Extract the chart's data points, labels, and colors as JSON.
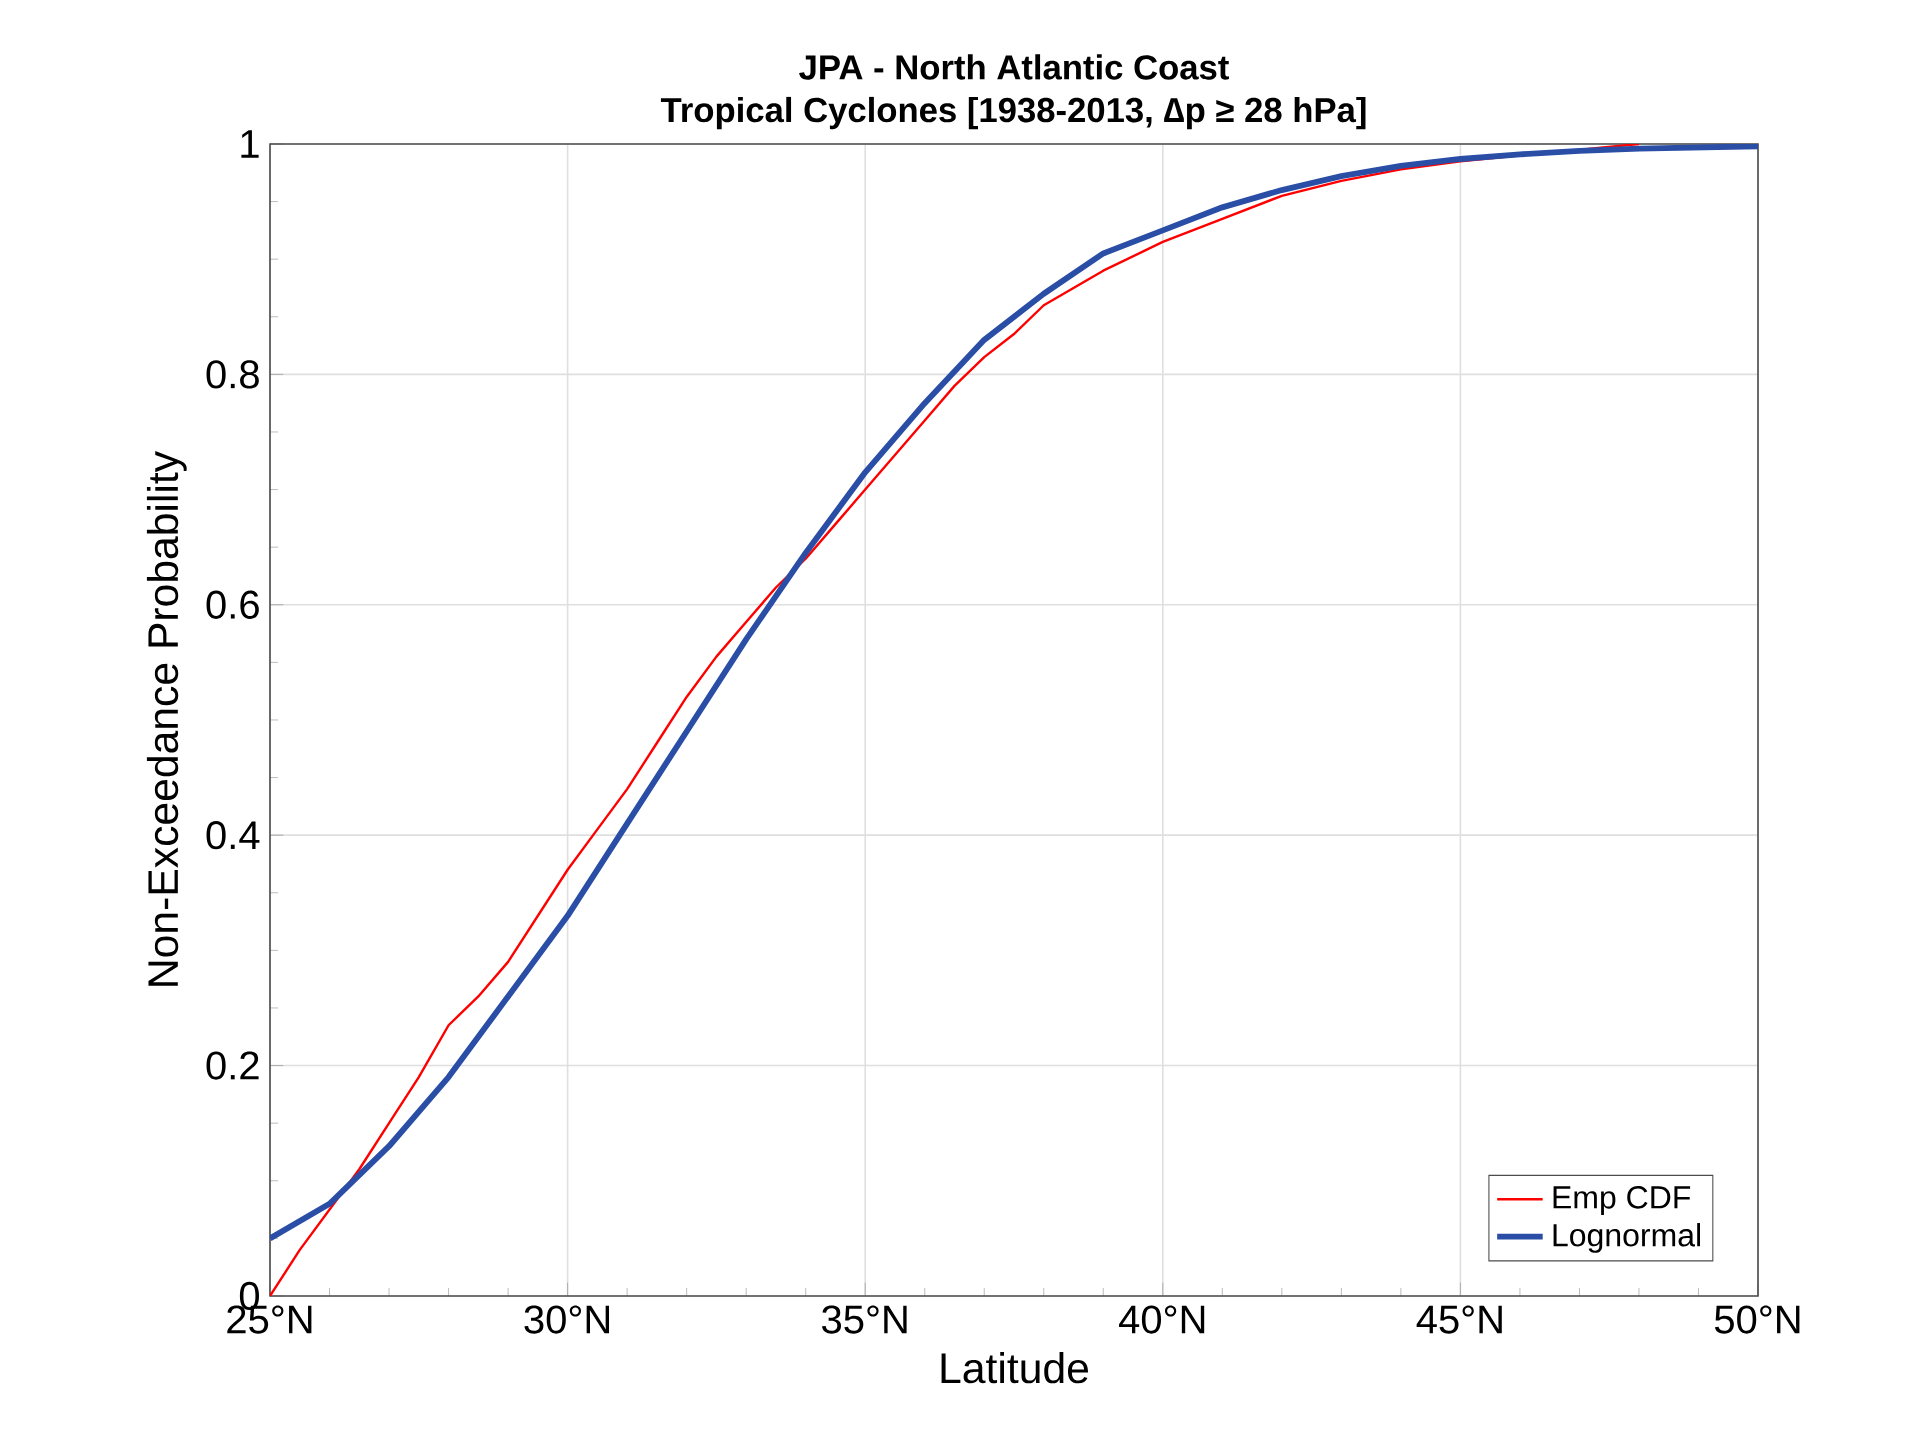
{
  "chart_data": {
    "type": "line",
    "title": "JPA - North Atlantic Coast",
    "subtitle": "Tropical Cyclones [1938-2013, ∆p ≥ 28 hPa]",
    "xlabel": "Latitude",
    "ylabel": "Non-Exceedance Probability",
    "xlim": [
      25,
      50
    ],
    "xticks": [
      {
        "value": 25,
        "label": "25°N"
      },
      {
        "value": 30,
        "label": "30°N"
      },
      {
        "value": 35,
        "label": "35°N"
      },
      {
        "value": 40,
        "label": "40°N"
      },
      {
        "value": 45,
        "label": "45°N"
      },
      {
        "value": 50,
        "label": "50°N"
      }
    ],
    "ylim": [
      0,
      1
    ],
    "yticks": [
      0,
      0.2,
      0.4,
      0.6,
      0.8,
      1
    ],
    "grid": true,
    "legend": "bottom right",
    "series": [
      {
        "name": "Emp CDF",
        "color": "#ff0000",
        "x": [
          25,
          25.5,
          26,
          26.5,
          27,
          27.5,
          28,
          28.5,
          29,
          29.5,
          30,
          30.5,
          31,
          31.5,
          32,
          32.5,
          33,
          33.5,
          34,
          34.5,
          35,
          35.5,
          36,
          36.5,
          37,
          37.5,
          38,
          38.5,
          39,
          40,
          41,
          42,
          43,
          44,
          45,
          46,
          47,
          48
        ],
        "values": [
          0,
          0.04,
          0.075,
          0.11,
          0.15,
          0.19,
          0.235,
          0.26,
          0.29,
          0.33,
          0.37,
          0.405,
          0.44,
          0.48,
          0.52,
          0.555,
          0.585,
          0.615,
          0.64,
          0.67,
          0.7,
          0.73,
          0.76,
          0.79,
          0.815,
          0.835,
          0.86,
          0.875,
          0.89,
          0.915,
          0.935,
          0.955,
          0.968,
          0.978,
          0.985,
          null,
          null,
          1
        ]
      },
      {
        "name": "Lognormal",
        "color": "#2a4ea6",
        "x": [
          25,
          26,
          27,
          28,
          29,
          30,
          31,
          32,
          33,
          34,
          35,
          36,
          37,
          38,
          39,
          40,
          41,
          42,
          43,
          44,
          45,
          46,
          47,
          48,
          50
        ],
        "values": [
          0.05,
          0.08,
          0.13,
          0.19,
          0.26,
          0.33,
          0.41,
          0.49,
          0.57,
          0.645,
          0.715,
          0.775,
          0.83,
          0.87,
          0.905,
          0.925,
          0.945,
          0.96,
          0.972,
          0.981,
          0.987,
          0.991,
          0.994,
          0.996,
          0.998
        ]
      }
    ]
  }
}
